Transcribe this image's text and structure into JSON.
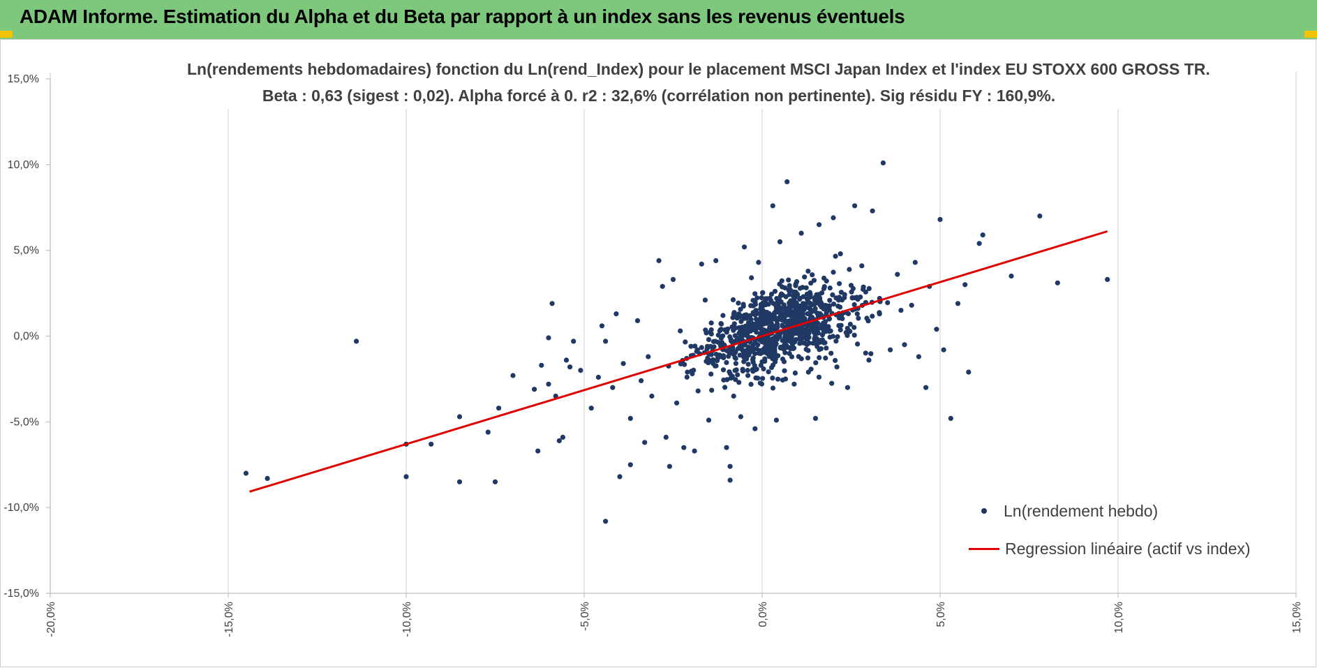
{
  "header": {
    "title": "ADAM Informe. Estimation du Alpha et du Beta par rapport à un index sans les revenus éventuels",
    "background": "#7dc87d",
    "accent": "#f5c400"
  },
  "chart_data": {
    "type": "scatter",
    "title_line1": "Ln(rendements hebdomadaires) fonction du Ln(rend_Index) pour le placement MSCI Japan Index et l'index EU STOXX 600 GROSS TR.",
    "title_line2": "Beta : 0,63 (sigest : 0,02). Alpha forcé à 0. r2 : 32,6% (corrélation non pertinente). Sig résidu FY : 160,9%.",
    "xlim": [
      -20,
      15
    ],
    "ylim": [
      -15,
      15
    ],
    "x_ticks": [
      -20,
      -15,
      -10,
      -5,
      0,
      5,
      10,
      15
    ],
    "y_ticks": [
      -15,
      -10,
      -5,
      0,
      5,
      10,
      15
    ],
    "x_tick_labels": [
      "-20,0%",
      "-15,0%",
      "-10,0%",
      "-5,0%",
      "0,0%",
      "5,0%",
      "10,0%",
      "15,0%"
    ],
    "y_tick_labels": [
      "-15,0%",
      "-10,0%",
      "-5,0%",
      "0,0%",
      "5,0%",
      "10,0%",
      "15,0%"
    ],
    "grid": "vertical",
    "legend_position": "bottom-right",
    "beta": 0.63,
    "alpha": 0,
    "regression_range": [
      -14.4,
      9.7
    ],
    "point_color": "#203864",
    "line_color": "#e00000",
    "legend": {
      "scatter_label": "Ln(rendement hebdo)",
      "line_label": "Regression linéaire (actif vs index)"
    },
    "series": [
      {
        "name": "Ln(rendement hebdo)",
        "points": [
          [
            -14.5,
            -8.0
          ],
          [
            -13.9,
            -8.3
          ],
          [
            -11.4,
            -0.3
          ],
          [
            -10.0,
            -6.3
          ],
          [
            -10.0,
            -8.2
          ],
          [
            -9.3,
            -6.3
          ],
          [
            -8.5,
            -4.7
          ],
          [
            -8.5,
            -8.5
          ],
          [
            -7.7,
            -5.6
          ],
          [
            -7.5,
            -8.5
          ],
          [
            -7.4,
            -4.2
          ],
          [
            -7.0,
            -2.3
          ],
          [
            -6.4,
            -3.1
          ],
          [
            -6.3,
            -6.7
          ],
          [
            -6.2,
            -1.7
          ],
          [
            -6.0,
            -2.8
          ],
          [
            -6.0,
            -0.1
          ],
          [
            -5.9,
            1.9
          ],
          [
            -5.8,
            -3.5
          ],
          [
            -5.7,
            -6.1
          ],
          [
            -5.6,
            -5.9
          ],
          [
            -5.5,
            -1.4
          ],
          [
            -5.4,
            -1.8
          ],
          [
            -5.3,
            -0.3
          ],
          [
            -5.1,
            -2.0
          ],
          [
            -4.8,
            -4.2
          ],
          [
            -4.6,
            -2.4
          ],
          [
            -4.5,
            0.6
          ],
          [
            -4.4,
            -0.3
          ],
          [
            -4.4,
            -10.8
          ],
          [
            -4.2,
            -3.0
          ],
          [
            -4.1,
            1.3
          ],
          [
            -4.0,
            -8.2
          ],
          [
            -3.9,
            -1.6
          ],
          [
            -3.7,
            -4.8
          ],
          [
            -3.7,
            -7.5
          ],
          [
            -3.5,
            0.9
          ],
          [
            -3.4,
            -2.6
          ],
          [
            -3.3,
            -6.2
          ],
          [
            -3.2,
            -1.2
          ],
          [
            -3.1,
            -3.5
          ],
          [
            -2.9,
            4.4
          ],
          [
            -2.8,
            2.9
          ],
          [
            -2.7,
            -5.9
          ],
          [
            -2.6,
            -7.6
          ],
          [
            -2.5,
            3.3
          ],
          [
            -2.4,
            -3.9
          ],
          [
            -2.3,
            0.3
          ],
          [
            -2.2,
            -6.5
          ],
          [
            -2.1,
            -2.1
          ],
          [
            -2.0,
            -0.6
          ],
          [
            -1.9,
            -6.7
          ],
          [
            -1.8,
            -3.2
          ],
          [
            -1.7,
            4.2
          ],
          [
            -1.6,
            2.1
          ],
          [
            -1.5,
            -4.9
          ],
          [
            -1.3,
            4.4
          ],
          [
            -1.2,
            -1.2
          ],
          [
            -1.1,
            1.2
          ],
          [
            -1.0,
            -6.5
          ],
          [
            -0.9,
            -8.4
          ],
          [
            -0.9,
            -7.6
          ],
          [
            -0.8,
            -3.5
          ],
          [
            -0.6,
            -4.7
          ],
          [
            -0.5,
            5.2
          ],
          [
            -0.4,
            -2.3
          ],
          [
            -0.3,
            3.4
          ],
          [
            -0.2,
            -5.4
          ],
          [
            -0.1,
            4.3
          ],
          [
            0.0,
            -1.5
          ],
          [
            0.3,
            7.6
          ],
          [
            0.4,
            -4.9
          ],
          [
            0.5,
            5.5
          ],
          [
            0.7,
            9.0
          ],
          [
            0.9,
            -2.8
          ],
          [
            1.1,
            6.0
          ],
          [
            1.3,
            -2.1
          ],
          [
            1.5,
            -4.8
          ],
          [
            1.6,
            6.5
          ],
          [
            1.8,
            -0.7
          ],
          [
            2.0,
            6.9
          ],
          [
            2.1,
            -1.8
          ],
          [
            2.2,
            4.8
          ],
          [
            2.4,
            -3.0
          ],
          [
            2.6,
            7.6
          ],
          [
            2.8,
            4.1
          ],
          [
            3.0,
            -1.4
          ],
          [
            3.1,
            7.3
          ],
          [
            3.3,
            2.2
          ],
          [
            3.4,
            10.1
          ],
          [
            3.6,
            -0.8
          ],
          [
            3.8,
            3.6
          ],
          [
            4.0,
            -0.5
          ],
          [
            4.2,
            1.8
          ],
          [
            4.4,
            -1.2
          ],
          [
            4.6,
            -3.0
          ],
          [
            4.7,
            2.9
          ],
          [
            5.0,
            6.8
          ],
          [
            5.1,
            -0.8
          ],
          [
            5.3,
            -4.8
          ],
          [
            5.5,
            1.9
          ],
          [
            5.7,
            3.0
          ],
          [
            5.8,
            -2.1
          ],
          [
            6.1,
            5.4
          ],
          [
            6.2,
            5.9
          ],
          [
            7.0,
            3.5
          ],
          [
            7.8,
            7.0
          ],
          [
            8.3,
            3.1
          ],
          [
            9.7,
            3.3
          ],
          [
            4.9,
            0.4
          ],
          [
            4.3,
            4.3
          ],
          [
            3.9,
            1.5
          ]
        ]
      }
    ],
    "cloud": {
      "count": 900,
      "center_x": 0.5,
      "center_y": 0.4,
      "spread_x": 1.5,
      "spread_y": 2.0,
      "seed": 7
    }
  }
}
